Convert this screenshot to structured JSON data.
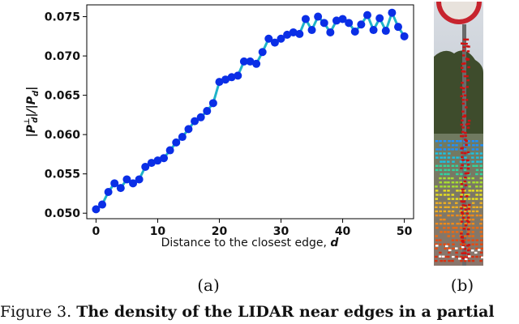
{
  "chart_data": {
    "type": "line",
    "x": [
      0,
      1,
      2,
      3,
      4,
      5,
      6,
      7,
      8,
      9,
      10,
      11,
      12,
      13,
      14,
      15,
      16,
      17,
      18,
      19,
      20,
      21,
      22,
      23,
      24,
      25,
      26,
      27,
      28,
      29,
      30,
      31,
      32,
      33,
      34,
      35,
      36,
      37,
      38,
      39,
      40,
      41,
      42,
      43,
      44,
      45,
      46,
      47,
      48,
      49,
      50
    ],
    "y": [
      0.0505,
      0.0511,
      0.0527,
      0.0538,
      0.0532,
      0.0543,
      0.0538,
      0.0543,
      0.0559,
      0.0564,
      0.0567,
      0.057,
      0.058,
      0.059,
      0.0597,
      0.0607,
      0.0617,
      0.0622,
      0.063,
      0.064,
      0.0667,
      0.067,
      0.0673,
      0.0675,
      0.0693,
      0.0693,
      0.069,
      0.0705,
      0.0722,
      0.0717,
      0.0722,
      0.0727,
      0.073,
      0.0728,
      0.0747,
      0.0733,
      0.075,
      0.0742,
      0.073,
      0.0745,
      0.0747,
      0.0742,
      0.0731,
      0.074,
      0.0752,
      0.0733,
      0.0748,
      0.0732,
      0.0755,
      0.0737,
      0.0725
    ],
    "xticks": [
      0,
      10,
      20,
      30,
      40,
      50
    ],
    "xtick_labels": [
      "0",
      "10",
      "20",
      "30",
      "40",
      "50"
    ],
    "yticks": [
      0.05,
      0.055,
      0.06,
      0.065,
      0.07,
      0.075
    ],
    "ytick_labels": [
      "0.050",
      "0.055",
      "0.060",
      "0.065",
      "0.070",
      "0.075"
    ],
    "xlim": [
      -1.5,
      51.5
    ],
    "ylim": [
      0.0493,
      0.0765
    ],
    "xlabel": "Distance to the closest edge, ",
    "xlabel_var": "d",
    "ylabel": "|P",
    "ylabel_sup": "⊥",
    "ylabel_sub": "d",
    "ylabel_mid": "|/|P",
    "ylabel_sub2": "d",
    "ylabel_end": "|",
    "grid": false,
    "line_color": "#1fb3c8",
    "marker_color": "#0a2ee6"
  },
  "panels": {
    "a_label": "(a)",
    "b_label": "(b)"
  },
  "caption": {
    "prefix": "Figure 3.",
    "bold_text": "The density of the LIDAR near edges in a partial"
  },
  "colors": {
    "photo_sky": "#c9ced6",
    "photo_tree": "#3b4a2a",
    "photo_road": "#7a6a60",
    "sign_red": "#c0202a",
    "edge_red": "#d11010"
  }
}
